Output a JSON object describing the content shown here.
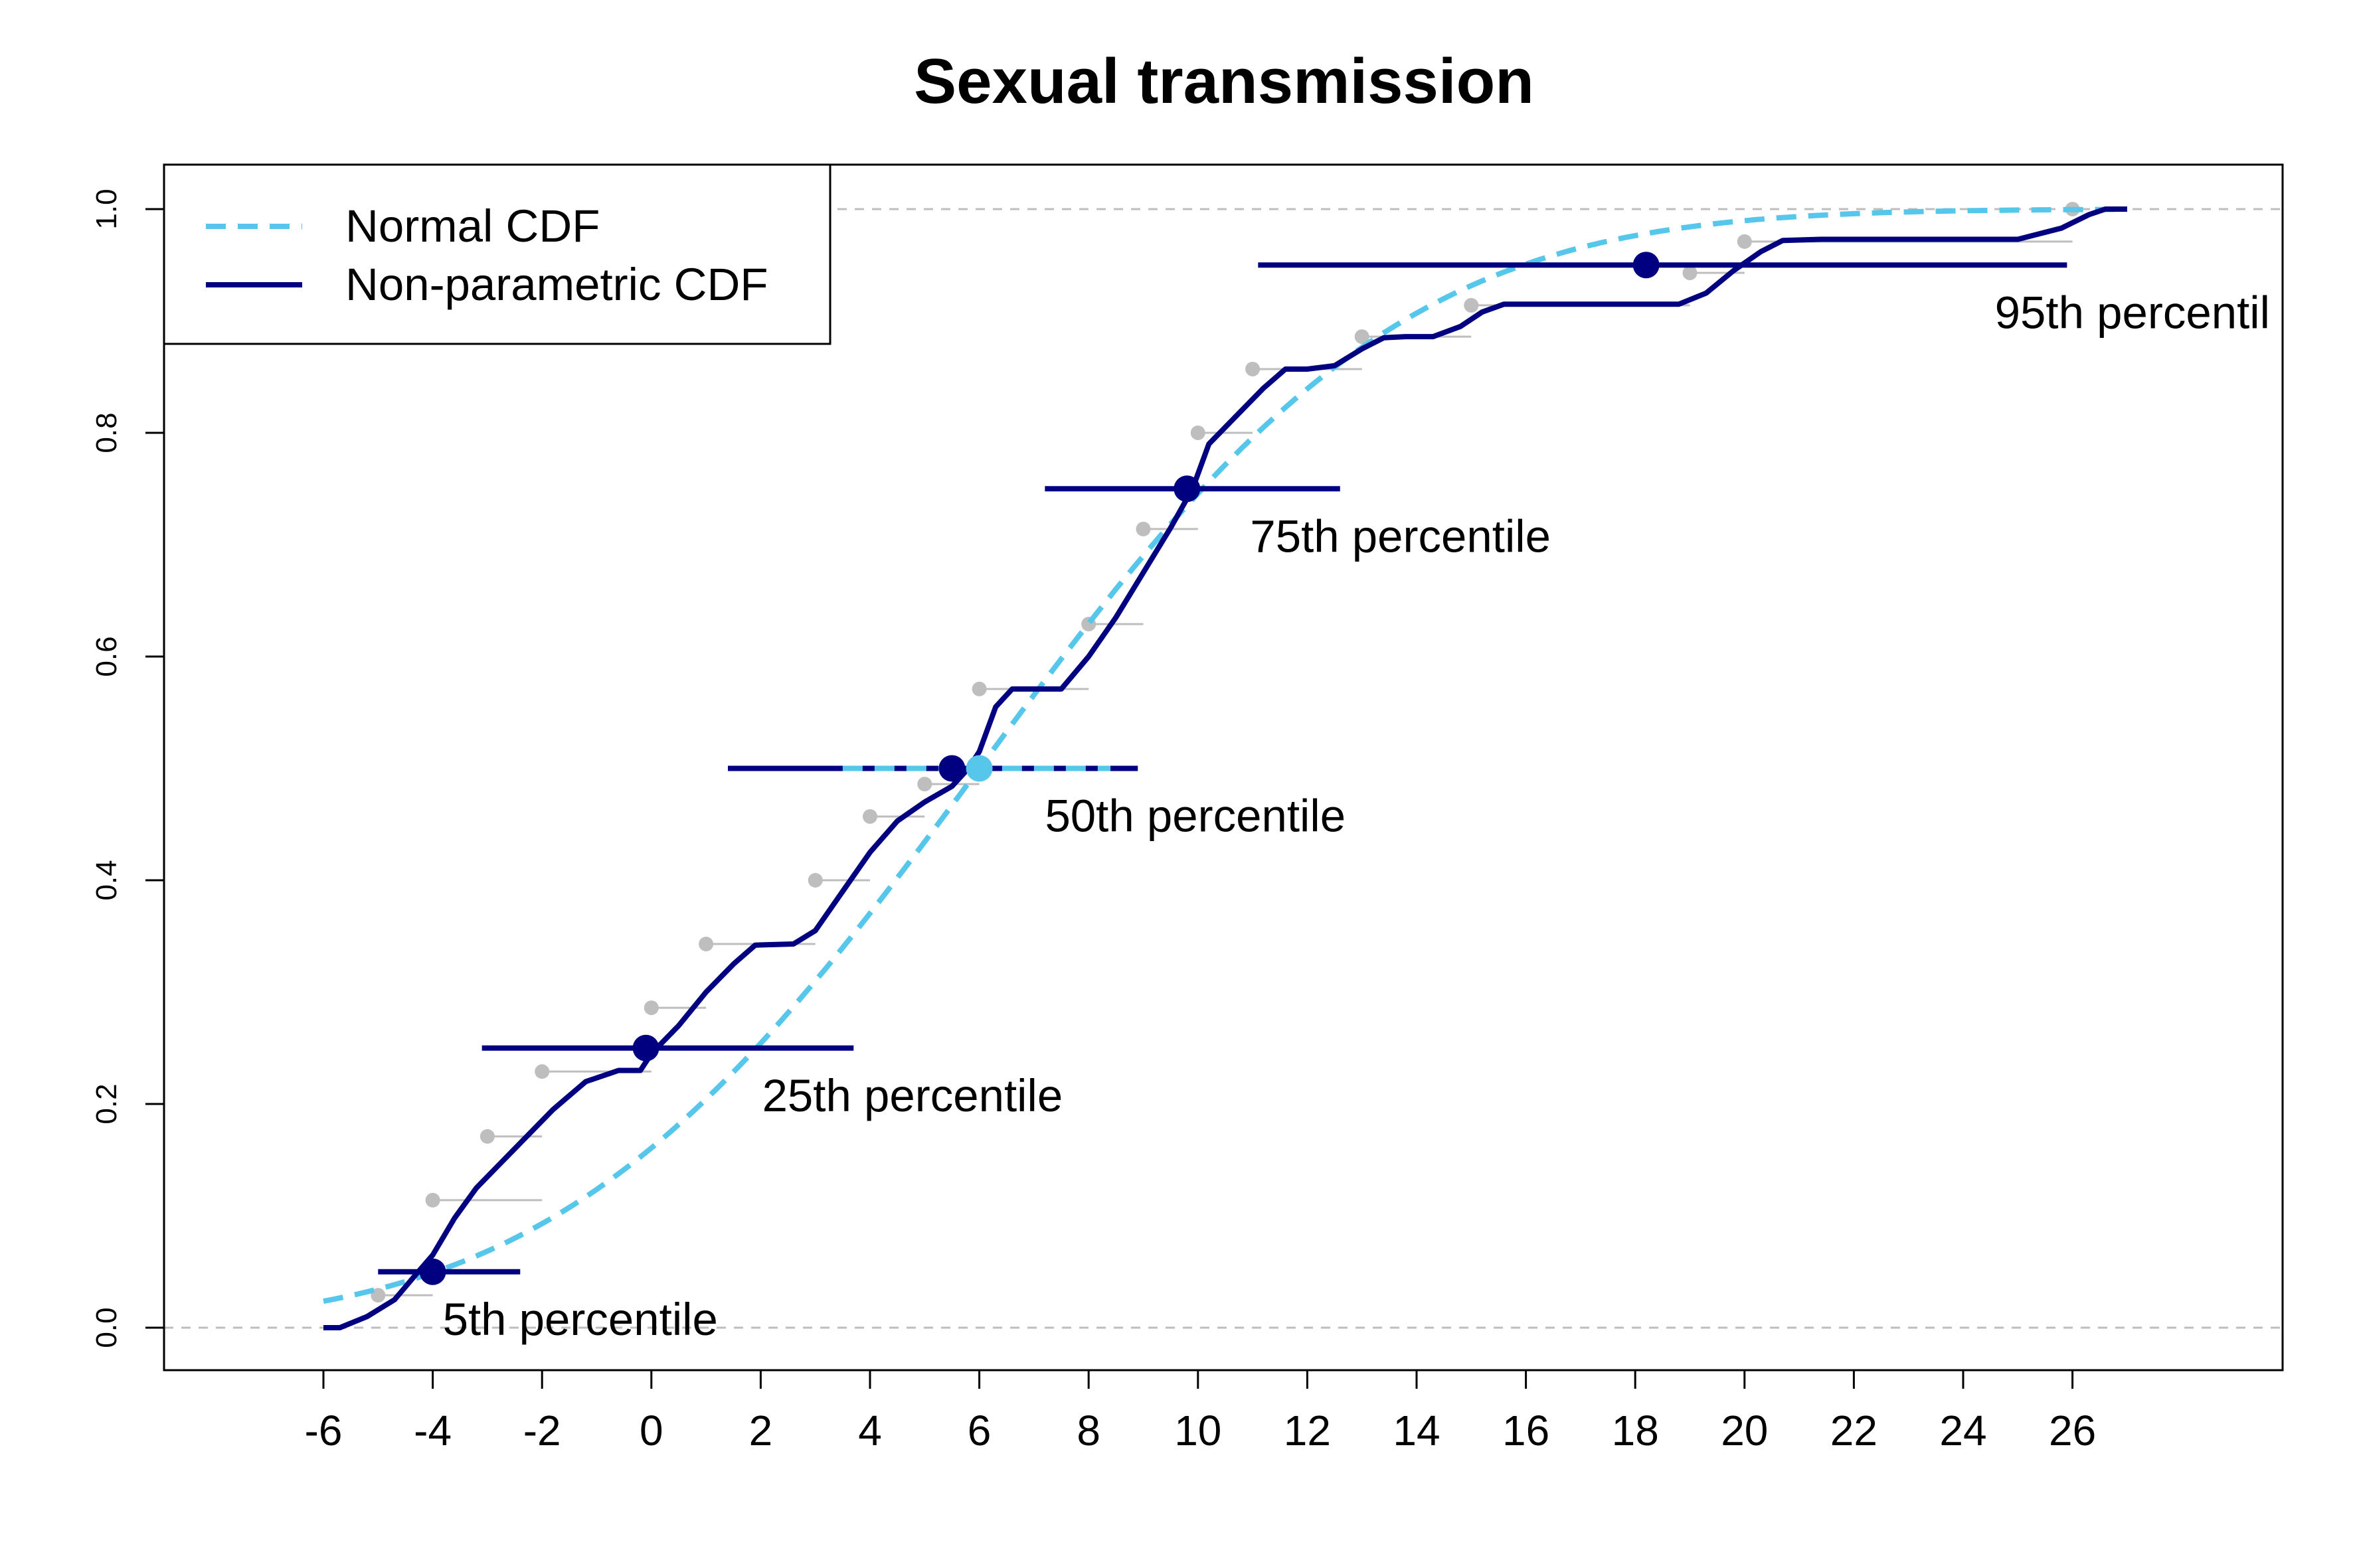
{
  "chart_data": {
    "type": "line",
    "title": "Sexual transmission",
    "xlabel": "",
    "ylabel": "",
    "xlim": [
      -6,
      27
    ],
    "ylim": [
      0,
      1
    ],
    "x_ticks": [
      -6,
      -4,
      -2,
      0,
      2,
      4,
      6,
      8,
      10,
      12,
      14,
      16,
      18,
      20,
      22,
      24,
      26
    ],
    "y_ticks": [
      0.0,
      0.2,
      0.4,
      0.6,
      0.8,
      1.0
    ],
    "y_tick_labels": [
      "0.0",
      "0.2",
      "0.4",
      "0.6",
      "0.8",
      "1.0"
    ],
    "reference_lines_y": [
      0,
      1
    ],
    "legend": {
      "position": "top-left",
      "entries": [
        {
          "label": "Normal CDF",
          "color": "#56C7EB",
          "style": "dashed"
        },
        {
          "label": "Non-parametric CDF",
          "color": "#000080",
          "style": "solid"
        }
      ]
    },
    "colors": {
      "normal": "#56C7EB",
      "nonparametric": "#000080",
      "empirical": "#BEBEBE",
      "reference": "#BEBEBE"
    },
    "normal_cdf": {
      "mean": 6.0,
      "sd": 6.05
    },
    "nonparametric_cdf": {
      "x": [
        -6,
        -5.7,
        -5.2,
        -4.7,
        -4.3,
        -4.0,
        -3.6,
        -3.2,
        -2.5,
        -1.8,
        -1.2,
        -0.6,
        -0.2,
        0.0,
        0.5,
        1.0,
        1.5,
        1.9,
        2.6,
        3.0,
        3.5,
        4.0,
        4.5,
        5.0,
        5.5,
        5.8,
        6.0,
        6.3,
        6.6,
        7.0,
        7.5,
        8.0,
        8.5,
        9.0,
        9.5,
        9.9,
        10.2,
        10.7,
        11.2,
        11.6,
        12.0,
        12.5,
        13.0,
        13.4,
        13.8,
        14.3,
        14.8,
        15.2,
        15.6,
        16.2,
        16.8,
        17.6,
        18.2,
        18.8,
        19.3,
        19.8,
        20.3,
        20.7,
        21.4,
        22.2,
        23.0,
        24.0,
        25.0,
        25.8,
        26.3,
        26.6,
        27.0
      ],
      "y": [
        0.0,
        0.0,
        0.01,
        0.025,
        0.048,
        0.065,
        0.098,
        0.125,
        0.16,
        0.195,
        0.22,
        0.23,
        0.23,
        0.245,
        0.27,
        0.3,
        0.325,
        0.342,
        0.343,
        0.355,
        0.39,
        0.425,
        0.453,
        0.47,
        0.484,
        0.5,
        0.515,
        0.555,
        0.571,
        0.571,
        0.571,
        0.6,
        0.635,
        0.675,
        0.715,
        0.75,
        0.79,
        0.815,
        0.84,
        0.857,
        0.857,
        0.86,
        0.875,
        0.885,
        0.886,
        0.886,
        0.895,
        0.908,
        0.915,
        0.915,
        0.915,
        0.915,
        0.915,
        0.915,
        0.925,
        0.945,
        0.962,
        0.972,
        0.973,
        0.973,
        0.973,
        0.973,
        0.973,
        0.983,
        0.995,
        1.0,
        1.0
      ]
    },
    "empirical_cdf": {
      "x": [
        -5,
        -4,
        -2,
        0,
        1,
        3,
        4,
        5,
        6,
        8,
        9,
        10,
        11,
        13,
        15,
        19,
        20,
        26
      ],
      "y": [
        0.029,
        0.114,
        0.229,
        0.286,
        0.343,
        0.4,
        0.457,
        0.486,
        0.571,
        0.629,
        0.714,
        0.8,
        0.857,
        0.886,
        0.914,
        0.943,
        0.971,
        1.0
      ],
      "extra_point": {
        "x": -3,
        "y": 0.171
      }
    },
    "percentiles": [
      {
        "label": "5th percentile",
        "p": 0.05,
        "estimate": -4.0,
        "ci": [
          -5.0,
          -2.4
        ]
      },
      {
        "label": "25th percentile",
        "p": 0.25,
        "estimate": -0.1,
        "ci": [
          -3.1,
          3.7
        ]
      },
      {
        "label": "50th percentile",
        "p": 0.5,
        "estimate": 5.5,
        "ci": [
          1.4,
          8.9
        ],
        "normal_estimate": 6.0,
        "normal_ci": [
          3.5,
          8.4
        ]
      },
      {
        "label": "75th percentile",
        "p": 0.75,
        "estimate": 9.8,
        "ci": [
          7.2,
          12.6
        ]
      },
      {
        "label": "95th percentil",
        "p": 0.95,
        "estimate": 18.2,
        "ci": [
          11.1,
          25.9
        ]
      }
    ]
  }
}
